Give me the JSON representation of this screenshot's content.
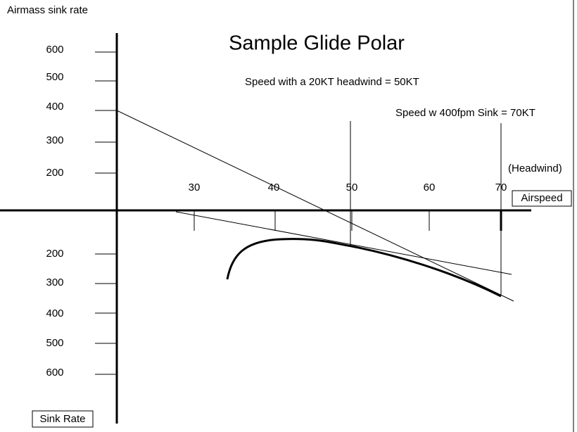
{
  "header": {
    "axis_label": "Airmass sink rate",
    "title": "Sample Glide Polar"
  },
  "annotations": {
    "headwind_note": "Speed with a 20KT headwind = 50KT",
    "sink_note": "Speed w 400fpm Sink = 70KT",
    "headwind": "(Headwind)",
    "airspeed": "Airspeed",
    "sink_rate": "Sink Rate"
  },
  "upper_labels": [
    "600",
    "500",
    "400",
    "300",
    "200"
  ],
  "lower_labels": [
    "200",
    "300",
    "400",
    "500",
    "600"
  ],
  "speed_labels": [
    "30",
    "40",
    "50",
    "60",
    "70"
  ]
}
